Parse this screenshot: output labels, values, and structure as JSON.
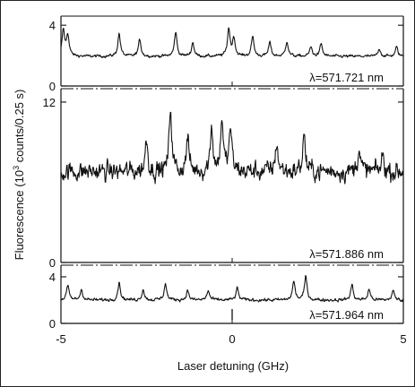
{
  "chart_data": {
    "type": "line",
    "xlabel": "Laser detuning (GHz)",
    "ylabel": "Fluorescence (10³ counts/0.25 s)",
    "ylabel_parts": {
      "pre": "Fluorescence (10",
      "sup": "3",
      "post": " counts/0.25 s)"
    },
    "xlim": [
      -5,
      5
    ],
    "x_ticks": [
      -5,
      0,
      5
    ],
    "x_tick_labels": [
      "-5",
      "0",
      "5"
    ],
    "panels": [
      {
        "label": "λ=571.721 nm",
        "ylim": [
          0,
          4.6
        ],
        "y_ticks": [
          0,
          4
        ],
        "y_tick_labels": [
          "0",
          "4"
        ],
        "baseline": 1.95,
        "noise": 0.12,
        "peaks": [
          [
            -4.93,
            1.7
          ],
          [
            -4.8,
            1.4
          ],
          [
            -3.3,
            1.5
          ],
          [
            -2.7,
            1.1
          ],
          [
            -1.65,
            1.6
          ],
          [
            -1.15,
            0.9
          ],
          [
            -0.1,
            1.8
          ],
          [
            0.05,
            1.2
          ],
          [
            0.6,
            1.3
          ],
          [
            1.1,
            0.9
          ],
          [
            1.6,
            1.0
          ],
          [
            2.3,
            0.6
          ],
          [
            2.6,
            0.8
          ],
          [
            4.3,
            0.5
          ],
          [
            4.8,
            0.6
          ]
        ]
      },
      {
        "label": "λ=571.886 nm",
        "ylim": [
          0,
          13
        ],
        "y_ticks": [
          0,
          12
        ],
        "y_tick_labels": [
          "0",
          "12"
        ],
        "baseline": 6.8,
        "noise": 0.9,
        "peaks": [
          [
            -2.5,
            2.5
          ],
          [
            -1.8,
            4.8
          ],
          [
            -1.3,
            2.5
          ],
          [
            -0.6,
            3.5
          ],
          [
            -0.3,
            4.0
          ],
          [
            -0.05,
            3.3
          ],
          [
            1.3,
            2.2
          ],
          [
            2.1,
            2.8
          ],
          [
            3.7,
            1.8
          ],
          [
            4.4,
            1.2
          ]
        ]
      },
      {
        "label": "λ=571.964 nm",
        "ylim": [
          0,
          5
        ],
        "y_ticks": [
          0,
          4
        ],
        "y_tick_labels": [
          "0",
          "4"
        ],
        "baseline": 2.0,
        "noise": 0.18,
        "peaks": [
          [
            -4.8,
            1.2
          ],
          [
            -4.4,
            0.9
          ],
          [
            -3.3,
            1.5
          ],
          [
            -2.6,
            0.9
          ],
          [
            -1.95,
            1.4
          ],
          [
            -1.3,
            0.8
          ],
          [
            -0.7,
            0.8
          ],
          [
            0.15,
            1.0
          ],
          [
            1.8,
            1.6
          ],
          [
            2.15,
            2.0
          ],
          [
            3.5,
            1.3
          ],
          [
            4.0,
            0.9
          ],
          [
            4.7,
            0.8
          ]
        ],
        "marker_x": 0
      }
    ]
  }
}
